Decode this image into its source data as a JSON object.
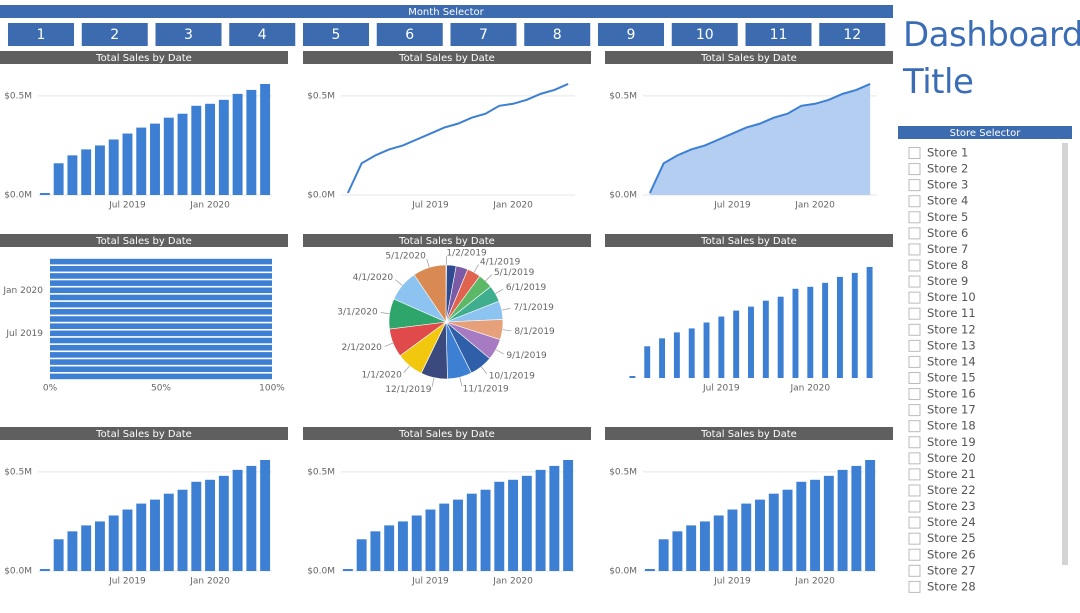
{
  "month_selector": {
    "title": "Month Selector",
    "buttons": [
      "1",
      "2",
      "3",
      "4",
      "5",
      "6",
      "7",
      "8",
      "9",
      "10",
      "11",
      "12"
    ]
  },
  "dashboard_title": "Dashboard Title",
  "store_selector": {
    "title": "Store Selector",
    "stores": [
      "Store 1",
      "Store 2",
      "Store 3",
      "Store 4",
      "Store 5",
      "Store 6",
      "Store 7",
      "Store 8",
      "Store 9",
      "Store 10",
      "Store 11",
      "Store 12",
      "Store 13",
      "Store 14",
      "Store 15",
      "Store 16",
      "Store 17",
      "Store 18",
      "Store 19",
      "Store 20",
      "Store 21",
      "Store 22",
      "Store 23",
      "Store 24",
      "Store 25",
      "Store 26",
      "Store 27",
      "Store 28"
    ]
  },
  "chart_data": [
    {
      "type": "bar",
      "title": "Total Sales by Date",
      "categories": [
        null,
        null,
        null,
        null,
        null,
        null,
        "Jul 2019",
        null,
        null,
        null,
        null,
        null,
        "Jan 2020",
        null,
        null,
        null,
        null
      ],
      "values": [
        0.01,
        0.16,
        0.2,
        0.23,
        0.25,
        0.28,
        0.31,
        0.34,
        0.36,
        0.39,
        0.41,
        0.45,
        0.46,
        0.48,
        0.51,
        0.53,
        0.56
      ],
      "color": "#3c7fd3",
      "ylim": [
        0,
        0.58
      ],
      "yticks": [
        {
          "value": 0,
          "label": "$0.0M"
        },
        {
          "value": 0.5,
          "label": "$0.5M"
        }
      ],
      "grid": true
    },
    {
      "type": "line",
      "title": "Total Sales by Date",
      "categories": [
        null,
        null,
        null,
        null,
        null,
        null,
        "Jul 2019",
        null,
        null,
        null,
        null,
        null,
        "Jan 2020",
        null,
        null,
        null,
        null
      ],
      "values": [
        0.01,
        0.16,
        0.2,
        0.23,
        0.25,
        0.28,
        0.31,
        0.34,
        0.36,
        0.39,
        0.41,
        0.45,
        0.46,
        0.48,
        0.51,
        0.53,
        0.56
      ],
      "color": "#3c7fd3",
      "ylim": [
        0,
        0.58
      ],
      "yticks": [
        {
          "value": 0,
          "label": "$0.0M"
        },
        {
          "value": 0.5,
          "label": "$0.5M"
        }
      ],
      "grid": true
    },
    {
      "type": "area",
      "title": "Total Sales by Date",
      "categories": [
        null,
        null,
        null,
        null,
        null,
        null,
        "Jul 2019",
        null,
        null,
        null,
        null,
        null,
        "Jan 2020",
        null,
        null,
        null,
        null
      ],
      "values": [
        0.01,
        0.16,
        0.2,
        0.23,
        0.25,
        0.28,
        0.31,
        0.34,
        0.36,
        0.39,
        0.41,
        0.45,
        0.46,
        0.48,
        0.51,
        0.53,
        0.56
      ],
      "color": "#3c7fd3",
      "fill_color": "#b3cef0",
      "ylim": [
        0,
        0.58
      ],
      "yticks": [
        {
          "value": 0,
          "label": "$0.0M"
        },
        {
          "value": 0.5,
          "label": "$0.5M"
        }
      ],
      "grid": true
    },
    {
      "type": "barh",
      "title": "Total Sales by Date",
      "categories": [
        null,
        null,
        null,
        null,
        null,
        null,
        "Jul 2019",
        null,
        null,
        null,
        null,
        null,
        "Jan 2020",
        null,
        null,
        null,
        null
      ],
      "values": [
        100,
        100,
        100,
        100,
        100,
        100,
        100,
        100,
        100,
        100,
        100,
        100,
        100,
        100,
        100,
        100,
        100
      ],
      "color": "#3c7fd3",
      "xlim": [
        0,
        100
      ],
      "xticks": [
        {
          "value": 0,
          "label": "0%"
        },
        {
          "value": 50,
          "label": "50%"
        },
        {
          "value": 100,
          "label": "100%"
        }
      ]
    },
    {
      "type": "pie",
      "title": "Total Sales by Date",
      "categories": [
        "1/2/2019",
        null,
        null,
        "4/1/2019",
        "5/1/2019",
        "6/1/2019",
        "7/1/2019",
        "8/1/2019",
        "9/1/2019",
        "10/1/2019",
        "11/1/2019",
        "12/1/2019",
        "1/1/2020",
        "2/1/2020",
        "3/1/2020",
        "4/1/2020",
        "5/1/2020"
      ],
      "values": [
        0.01,
        0.16,
        0.2,
        0.23,
        0.25,
        0.28,
        0.31,
        0.34,
        0.36,
        0.39,
        0.41,
        0.45,
        0.46,
        0.48,
        0.51,
        0.53,
        0.56
      ],
      "colors": [
        "#3c7fd3",
        "#2d4b8e",
        "#7b5aa6",
        "#e0634f",
        "#5ab867",
        "#3fae8f",
        "#8cc3f0",
        "#e6a17a",
        "#a77bc2",
        "#2f5fa8",
        "#3c7fd3",
        "#3b4a7e",
        "#f2c80f",
        "#e04a4a",
        "#2ea56a",
        "#8cc3f0",
        "#d98a52"
      ]
    },
    {
      "type": "bar",
      "title": "Total Sales by Date",
      "categories": [
        null,
        null,
        null,
        null,
        null,
        null,
        "Jul 2019",
        null,
        null,
        null,
        null,
        null,
        "Jan 2020",
        null,
        null,
        null,
        null
      ],
      "values": [
        0.01,
        0.16,
        0.2,
        0.23,
        0.25,
        0.28,
        0.31,
        0.34,
        0.36,
        0.39,
        0.41,
        0.45,
        0.46,
        0.48,
        0.51,
        0.53,
        0.56
      ],
      "color": "#3c7fd3",
      "ylim": [
        0,
        0.58
      ],
      "yticks": [],
      "grid": false
    },
    {
      "type": "bar",
      "title": "Total Sales by Date",
      "categories": [
        null,
        null,
        null,
        null,
        null,
        null,
        "Jul 2019",
        null,
        null,
        null,
        null,
        null,
        "Jan 2020",
        null,
        null,
        null,
        null
      ],
      "values": [
        0.01,
        0.16,
        0.2,
        0.23,
        0.25,
        0.28,
        0.31,
        0.34,
        0.36,
        0.39,
        0.41,
        0.45,
        0.46,
        0.48,
        0.51,
        0.53,
        0.56
      ],
      "color": "#3c7fd3",
      "ylim": [
        0,
        0.58
      ],
      "yticks": [
        {
          "value": 0,
          "label": "$0.0M"
        },
        {
          "value": 0.5,
          "label": "$0.5M"
        }
      ],
      "grid": true
    },
    {
      "type": "bar",
      "title": "Total Sales by Date",
      "categories": [
        null,
        null,
        null,
        null,
        null,
        null,
        "Jul 2019",
        null,
        null,
        null,
        null,
        null,
        "Jan 2020",
        null,
        null,
        null,
        null
      ],
      "values": [
        0.01,
        0.16,
        0.2,
        0.23,
        0.25,
        0.28,
        0.31,
        0.34,
        0.36,
        0.39,
        0.41,
        0.45,
        0.46,
        0.48,
        0.51,
        0.53,
        0.56
      ],
      "color": "#3c7fd3",
      "ylim": [
        0,
        0.58
      ],
      "yticks": [
        {
          "value": 0,
          "label": "$0.0M"
        },
        {
          "value": 0.5,
          "label": "$0.5M"
        }
      ],
      "grid": true
    },
    {
      "type": "bar",
      "title": "Total Sales by Date",
      "categories": [
        null,
        null,
        null,
        null,
        null,
        null,
        "Jul 2019",
        null,
        null,
        null,
        null,
        null,
        "Jan 2020",
        null,
        null,
        null,
        null
      ],
      "values": [
        0.01,
        0.16,
        0.2,
        0.23,
        0.25,
        0.28,
        0.31,
        0.34,
        0.36,
        0.39,
        0.41,
        0.45,
        0.46,
        0.48,
        0.51,
        0.53,
        0.56
      ],
      "color": "#3c7fd3",
      "ylim": [
        0,
        0.58
      ],
      "yticks": [
        {
          "value": 0,
          "label": "$0.0M"
        },
        {
          "value": 0.5,
          "label": "$0.5M"
        }
      ],
      "grid": true
    }
  ]
}
